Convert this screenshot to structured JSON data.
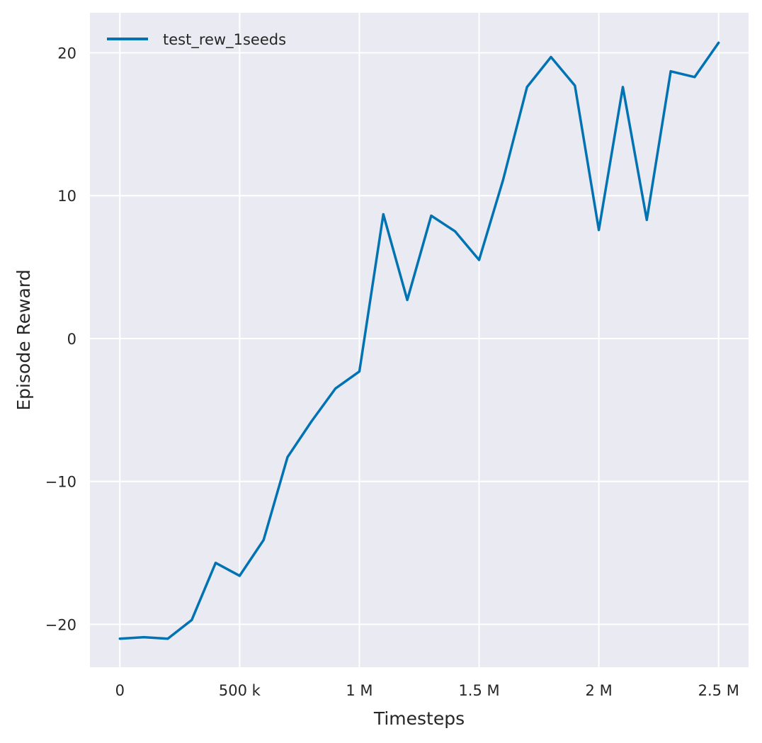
{
  "colors": {
    "background": "#eaeaf2",
    "grid": "#ffffff",
    "series": "#0173b2",
    "text": "#262626"
  },
  "chart_data": {
    "type": "line",
    "title": "",
    "xlabel": "Timesteps",
    "ylabel": "Episode Reward",
    "xlim": [
      -125000,
      2625000
    ],
    "ylim": [
      -23,
      22.8
    ],
    "grid": true,
    "legend_position": "top-left",
    "x_ticks": [
      {
        "value": 0,
        "label": "0"
      },
      {
        "value": 500000,
        "label": "500 k"
      },
      {
        "value": 1000000,
        "label": "1 M"
      },
      {
        "value": 1500000,
        "label": "1.5 M"
      },
      {
        "value": 2000000,
        "label": "2 M"
      },
      {
        "value": 2500000,
        "label": "2.5 M"
      }
    ],
    "y_ticks": [
      {
        "value": -20,
        "label": "−20"
      },
      {
        "value": -10,
        "label": "−10"
      },
      {
        "value": 0,
        "label": "0"
      },
      {
        "value": 10,
        "label": "10"
      },
      {
        "value": 20,
        "label": "20"
      }
    ],
    "series": [
      {
        "name": "test_rew_1seeds",
        "x": [
          0,
          100000,
          200000,
          300000,
          400000,
          500000,
          600000,
          700000,
          800000,
          900000,
          1000000,
          1100000,
          1200000,
          1300000,
          1400000,
          1500000,
          1600000,
          1700000,
          1800000,
          1900000,
          2000000,
          2100000,
          2200000,
          2300000,
          2400000,
          2500000
        ],
        "y": [
          -21.0,
          -20.9,
          -21.0,
          -19.7,
          -15.7,
          -16.6,
          -14.1,
          -8.3,
          -5.8,
          -3.5,
          -2.3,
          8.7,
          2.7,
          8.6,
          7.5,
          5.5,
          11.1,
          17.6,
          19.7,
          17.7,
          7.6,
          17.6,
          8.3,
          18.7,
          18.3,
          20.7
        ]
      }
    ]
  }
}
